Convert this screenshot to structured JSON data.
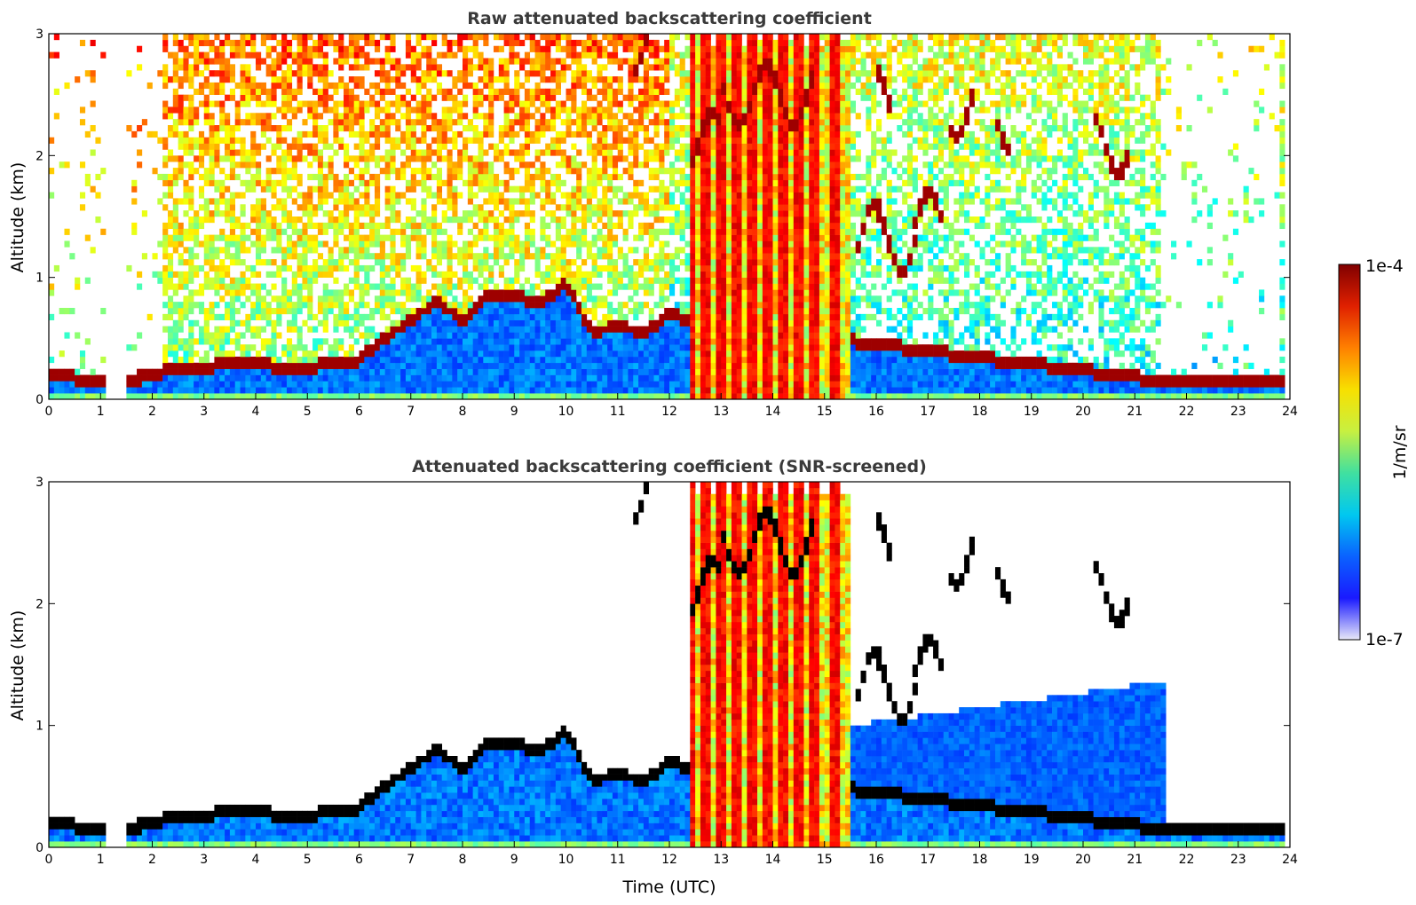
{
  "chart_data": [
    {
      "type": "heatmap",
      "title": "Raw attenuated backscattering coefficient",
      "xlabel": "",
      "ylabel": "Altitude (km)",
      "xlim": [
        0,
        24
      ],
      "ylim": [
        0,
        3
      ],
      "x_ticks": [
        0,
        1,
        2,
        3,
        4,
        5,
        6,
        7,
        8,
        9,
        10,
        11,
        12,
        13,
        14,
        15,
        16,
        17,
        18,
        19,
        20,
        21,
        22,
        23,
        24
      ],
      "y_ticks": [
        0,
        1,
        2,
        3
      ],
      "grid": false,
      "features": {
        "boundary_layer_top_km": [
          [
            0,
            0.2
          ],
          [
            1,
            0.15
          ],
          [
            1.5,
            0.15
          ],
          [
            2.5,
            0.25
          ],
          [
            4,
            0.3
          ],
          [
            4.6,
            0.25
          ],
          [
            5.9,
            0.3
          ],
          [
            6.5,
            0.5
          ],
          [
            7,
            0.65
          ],
          [
            7.5,
            0.8
          ],
          [
            8,
            0.65
          ],
          [
            8.5,
            0.85
          ],
          [
            9,
            0.85
          ],
          [
            9.5,
            0.8
          ],
          [
            10,
            0.95
          ],
          [
            10.5,
            0.55
          ],
          [
            11,
            0.6
          ],
          [
            11.5,
            0.55
          ],
          [
            12,
            0.7
          ],
          [
            12.3,
            0.65
          ],
          [
            21.6,
            0.15
          ],
          [
            23.8,
            0.15
          ]
        ],
        "cloud_layers": [
          {
            "t": [
              11.3,
              11.8
            ],
            "alt_km": 2.9
          },
          {
            "t": [
              12.4,
              13.0
            ],
            "alt_km": 2.1
          },
          {
            "t": [
              15.6,
              16.1
            ],
            "alt_km": 1.35
          },
          {
            "t": [
              16.0,
              16.8
            ],
            "alt_km": 1.3
          },
          {
            "t": [
              16.7,
              17.3
            ],
            "alt_km": 1.45
          },
          {
            "t": [
              17.4,
              17.9
            ],
            "alt_km": 2.4
          },
          {
            "t": [
              18.3,
              18.6
            ],
            "alt_km": 2.3
          },
          {
            "t": [
              20.2,
              20.9
            ],
            "alt_km": 2.1
          },
          {
            "t": [
              16.0,
              16.3
            ],
            "alt_km": 2.45
          },
          {
            "t": [
              13.0,
              14.8
            ],
            "alt_km": 2.5
          }
        ],
        "precipitation_columns_hours": [
          12.4,
          12.7,
          13.0,
          13.3,
          13.6,
          13.9,
          14.2,
          14.5,
          14.8,
          15.2
        ]
      }
    },
    {
      "type": "heatmap",
      "title": "Attenuated backscattering coefficient (SNR-screened)",
      "xlabel": "Time (UTC)",
      "ylabel": "Altitude (km)",
      "xlim": [
        0,
        24
      ],
      "ylim": [
        0,
        3
      ],
      "x_ticks": [
        0,
        1,
        2,
        3,
        4,
        5,
        6,
        7,
        8,
        9,
        10,
        11,
        12,
        13,
        14,
        15,
        16,
        17,
        18,
        19,
        20,
        21,
        22,
        23,
        24
      ],
      "y_ticks": [
        0,
        1,
        2,
        3
      ],
      "grid": false
    }
  ],
  "colorbar": {
    "label": "1/m/sr",
    "min_label": "1e-7",
    "max_label": "1e-4",
    "scale": "log",
    "range": [
      1e-07,
      0.0001
    ],
    "colormap": "jet",
    "colors": [
      "#e8e8f8",
      "#1a1aff",
      "#0a62ff",
      "#00c8f0",
      "#40e0a0",
      "#c8f040",
      "#f8e000",
      "#ff8000",
      "#e02000",
      "#800000"
    ]
  }
}
